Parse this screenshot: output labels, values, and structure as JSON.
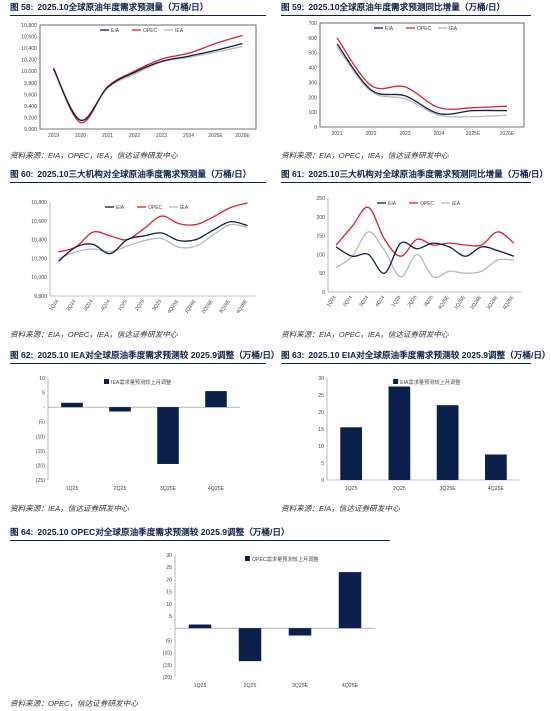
{
  "colors": {
    "navy": "#0b1f4b",
    "red": "#e0202a",
    "gray": "#b8b8be"
  },
  "panels": [
    {
      "fig": "图 58:",
      "title": "2025.10全球原油年度需求预测量（万桶/日）",
      "source": "资料来源：EIA，OPEC，IEA，信达证券研发中心",
      "chart_data": {
        "type": "line",
        "x": [
          "2019",
          "2020",
          "2021",
          "2022",
          "2023",
          "2024",
          "2025E",
          "2026E"
        ],
        "ylim": [
          9000,
          10800
        ],
        "yticks": [
          "9,000",
          "9,200",
          "9,400",
          "9,600",
          "9,800",
          "10,000",
          "10,200",
          "10,400",
          "10,600",
          "10,800"
        ],
        "legend": "top-center",
        "series": [
          {
            "name": "EIA",
            "color": "#0b1f4b",
            "values": [
              10040,
              9150,
              9720,
              9980,
              10170,
              10260,
              10360,
              10480
            ]
          },
          {
            "name": "OPEC",
            "color": "#e0202a",
            "values": [
              10060,
              9110,
              9730,
              10000,
              10210,
              10310,
              10480,
              10620
            ]
          },
          {
            "name": "IEA",
            "color": "#b8b8be",
            "values": [
              10030,
              9160,
              9710,
              9950,
              10160,
              10240,
              10330,
              10430
            ]
          }
        ]
      }
    },
    {
      "fig": "图 59:",
      "title": "2025.10全球原油年度需求预测同比增量（万桶/日）",
      "source": "资料来源：EIA，OPEC，IEA，信达证券研发中心",
      "chart_data": {
        "type": "line",
        "x": [
          "2021",
          "2022",
          "2023",
          "2024",
          "2025E",
          "2026E"
        ],
        "ylim": [
          0,
          700
        ],
        "yticks": [
          "0",
          "100",
          "200",
          "300",
          "400",
          "500",
          "600",
          "700"
        ],
        "legend": "top-center",
        "series": [
          {
            "name": "EIA",
            "color": "#0b1f4b",
            "values": [
              560,
              250,
              210,
              90,
              110,
              110
            ]
          },
          {
            "name": "OPEC",
            "color": "#e0202a",
            "values": [
              600,
              280,
              270,
              130,
              130,
              140
            ]
          },
          {
            "name": "IEA",
            "color": "#b8b8be",
            "values": [
              540,
              240,
              190,
              80,
              70,
              80
            ]
          }
        ]
      }
    },
    {
      "fig": "图 60:",
      "title": "2025.10三大机构对全球原油季度需求预测量（万桶/日）",
      "source": "资料来源：EIA，OPEC，IEA，信达证券研发中心",
      "chart_data": {
        "type": "line",
        "x": [
          "1Q24",
          "2Q24",
          "3Q24",
          "4Q24",
          "1Q25",
          "2Q25",
          "3Q25",
          "4Q25E",
          "1Q26E",
          "2Q26E",
          "3Q26E",
          "4Q26E"
        ],
        "ylim": [
          9800,
          10800
        ],
        "yticks": [
          "9,800",
          "10,000",
          "10,200",
          "10,400",
          "10,600",
          "10,800"
        ],
        "legend": "top-center",
        "series": [
          {
            "name": "EIA",
            "color": "#0b1f4b",
            "values": [
              10170,
              10320,
              10350,
              10250,
              10400,
              10440,
              10470,
              10390,
              10400,
              10500,
              10590,
              10550
            ]
          },
          {
            "name": "OPEC",
            "color": "#e0202a",
            "values": [
              10270,
              10320,
              10480,
              10440,
              10400,
              10520,
              10650,
              10570,
              10560,
              10640,
              10740,
              10790
            ]
          },
          {
            "name": "IEA",
            "color": "#b8b8be",
            "values": [
              10200,
              10270,
              10300,
              10270,
              10330,
              10390,
              10410,
              10320,
              10330,
              10450,
              10560,
              10530
            ]
          }
        ]
      }
    },
    {
      "fig": "图 61:",
      "title": "2025.10三大机构对全球原油季度需求预测同比增量（万桶/日）",
      "source": "资料来源：EIA，OPEC，IEA，信达证券研发中心",
      "chart_data": {
        "type": "line",
        "x": [
          "1Q24",
          "2Q24",
          "3Q24",
          "4Q24",
          "1Q25",
          "2Q25",
          "3Q25",
          "4Q25E",
          "1Q26E",
          "2Q26E",
          "3Q26E",
          "4Q26E"
        ],
        "ylim": [
          0,
          250
        ],
        "yticks": [
          "0",
          "50",
          "100",
          "150",
          "200",
          "250"
        ],
        "legend": "top-center",
        "series": [
          {
            "name": "EIA",
            "color": "#0b1f4b",
            "values": [
              120,
              95,
              100,
              50,
              130,
              115,
              130,
              120,
              95,
              120,
              110,
              95
            ]
          },
          {
            "name": "OPEC",
            "color": "#e0202a",
            "values": [
              125,
              175,
              225,
              140,
              95,
              140,
              125,
              130,
              125,
              125,
              160,
              130
            ]
          },
          {
            "name": "IEA",
            "color": "#b8b8be",
            "values": [
              65,
              95,
              160,
              110,
              40,
              100,
              40,
              55,
              50,
              55,
              85,
              85
            ]
          }
        ]
      }
    },
    {
      "fig": "图 62:",
      "title": "2025.10 IEA对全球原油季度需求预测较 2025.9调整（万桶/日）",
      "source": "资料来源：IEA，信达证券研发中心",
      "chart_data": {
        "type": "bar",
        "categories": [
          "1Q25",
          "2Q25",
          "3Q25E",
          "4Q25E"
        ],
        "values": [
          1.5,
          -1.5,
          -19.5,
          5.5
        ],
        "ylim": [
          -25,
          10
        ],
        "yticks": [
          "(25)",
          "(20)",
          "(15)",
          "(10)",
          "(5)",
          "-",
          "5",
          "10"
        ],
        "legend": "top-center",
        "series_name": "IEA需求量预测较上月调整",
        "color": "#0b1f4b"
      }
    },
    {
      "fig": "图 63:",
      "title": "2025.10 EIA对全球原油季度需求预测较 2025.9调整（万桶/日）",
      "source": "资料来源：EIA，信达证券研发中心",
      "chart_data": {
        "type": "bar",
        "categories": [
          "1Q25",
          "2Q25",
          "3Q25E",
          "4Q25E"
        ],
        "values": [
          15.5,
          27.5,
          22,
          7.5
        ],
        "ylim": [
          0,
          30
        ],
        "yticks": [
          "0",
          "5",
          "10",
          "15",
          "20",
          "25",
          "30"
        ],
        "legend": "top-center",
        "series_name": "EIA需求量预测较上月调整",
        "color": "#0b1f4b"
      }
    },
    {
      "fig": "图 64:",
      "title": "2025.10 OPEC对全球原油季度需求预测较 2025.9调整（万桶/日）",
      "source": "资料来源：OPEC，信达证券研发中心",
      "chart_data": {
        "type": "bar",
        "categories": [
          "1Q25",
          "2Q25",
          "3Q25E",
          "4Q25E"
        ],
        "values": [
          1.5,
          -13.5,
          -3,
          23
        ],
        "ylim": [
          -20,
          30
        ],
        "yticks": [
          "(20)",
          "(15)",
          "(10)",
          "(5)",
          "-",
          "5",
          "10",
          "15",
          "20",
          "25",
          "30"
        ],
        "legend": "top-center",
        "series_name": "OPEC需求量预测较上月调整",
        "color": "#0b1f4b"
      }
    }
  ]
}
